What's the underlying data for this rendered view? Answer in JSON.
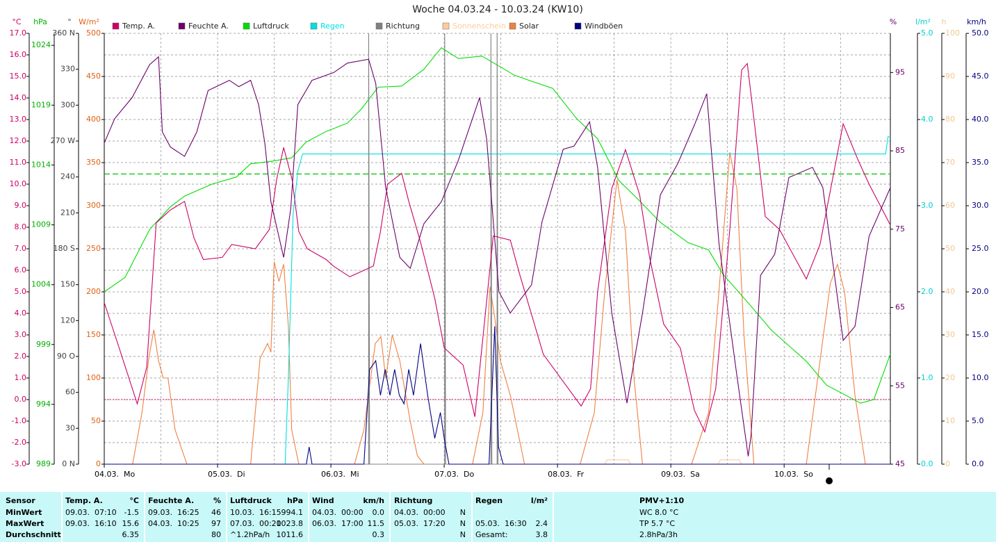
{
  "chart_data": {
    "type": "line",
    "title": "Woche 04.03.24 - 10.03.24 (KW10)",
    "xlim": [
      0,
      166.5
    ],
    "xticks": [
      {
        "value": 0,
        "label": "04.03.  Mo"
      },
      {
        "value": 24,
        "label": "05.03.  Di"
      },
      {
        "value": 48,
        "label": "06.03.  Mi"
      },
      {
        "value": 72,
        "label": "07.03.  Do"
      },
      {
        "value": 96,
        "label": "08.03.  Fr"
      },
      {
        "value": 120,
        "label": "09.03.  Sa"
      },
      {
        "value": 144,
        "label": "10.03.  So"
      }
    ],
    "grid": true,
    "axes": [
      {
        "unit": "°C",
        "color": "#cc0066",
        "ylim": [
          -3,
          17
        ],
        "yticks": [
          {
            "value": -3,
            "label": "-3.0"
          },
          {
            "value": -2,
            "label": "-2.0"
          },
          {
            "value": -1,
            "label": "-1.0"
          },
          {
            "value": 0,
            "label": "0.0"
          },
          {
            "value": 1,
            "label": "1.0"
          },
          {
            "value": 2,
            "label": "2.0"
          },
          {
            "value": 3,
            "label": "3.0"
          },
          {
            "value": 4,
            "label": "4.0"
          },
          {
            "value": 5,
            "label": "5.0"
          },
          {
            "value": 6,
            "label": "6.0"
          },
          {
            "value": 7,
            "label": "7.0"
          },
          {
            "value": 8,
            "label": "8.0"
          },
          {
            "value": 9,
            "label": "9.0"
          },
          {
            "value": 10,
            "label": "10.0"
          },
          {
            "value": 11,
            "label": "11.0"
          },
          {
            "value": 12,
            "label": "12.0"
          },
          {
            "value": 13,
            "label": "13.0"
          },
          {
            "value": 14,
            "label": "14.0"
          },
          {
            "value": 15,
            "label": "15.0"
          },
          {
            "value": 16,
            "label": "16.0"
          },
          {
            "value": 17,
            "label": "17.0"
          }
        ]
      },
      {
        "unit": "hPa",
        "color": "#00b000",
        "ylim": [
          989,
          1025
        ],
        "yticks": [
          989,
          994,
          999,
          1004,
          1009,
          1014,
          1019,
          1024
        ]
      },
      {
        "unit": "°",
        "color": "#404040",
        "ylim": [
          0,
          360
        ],
        "yticks": [
          {
            "value": 0,
            "label": "0 N"
          },
          30,
          60,
          {
            "value": 90,
            "label": "90 O"
          },
          120,
          150,
          {
            "value": 180,
            "label": "180 S"
          },
          210,
          240,
          {
            "value": 270,
            "label": "270 W"
          },
          300,
          330,
          {
            "value": 360,
            "label": "360 N"
          }
        ]
      },
      {
        "unit": "W/m²",
        "color": "#e06010",
        "ylim": [
          0,
          500
        ],
        "yticks": [
          0,
          50,
          100,
          150,
          200,
          250,
          300,
          350,
          400,
          450,
          500
        ]
      },
      {
        "unit": "%",
        "color": "#660066",
        "ylim": [
          45,
          100
        ],
        "yticks": [
          45,
          55,
          65,
          75,
          85,
          95
        ]
      },
      {
        "unit": "l/m²",
        "color": "#00d0d0",
        "ylim": [
          0,
          5
        ],
        "yticks": [
          {
            "value": 0,
            "label": "0.0"
          },
          {
            "value": 1,
            "label": "1.0"
          },
          {
            "value": 2,
            "label": "2.0"
          },
          {
            "value": 3,
            "label": "3.0"
          },
          {
            "value": 4,
            "label": "4.0"
          },
          {
            "value": 5,
            "label": "5.0"
          }
        ]
      },
      {
        "unit": "h",
        "color": "#f0c890",
        "ylim": [
          0,
          100
        ],
        "yticks": [
          0,
          10,
          20,
          30,
          40,
          50,
          60,
          70,
          80,
          90,
          100
        ]
      },
      {
        "unit": "km/h",
        "color": "#000080",
        "ylim": [
          0,
          50
        ],
        "yticks": [
          {
            "value": 0,
            "label": "0.0"
          },
          {
            "value": 5,
            "label": "5.0"
          },
          {
            "value": 10,
            "label": "10.0"
          },
          {
            "value": 15,
            "label": "15.0"
          },
          {
            "value": 20,
            "label": "20.0"
          },
          {
            "value": 25,
            "label": "25.0"
          },
          {
            "value": 30,
            "label": "30.0"
          },
          {
            "value": 35,
            "label": "35.0"
          },
          {
            "value": 40,
            "label": "40.0"
          },
          {
            "value": 45,
            "label": "45.0"
          },
          {
            "value": 50,
            "label": "50.0"
          }
        ]
      }
    ],
    "reference_lines": [
      {
        "axis": 1,
        "value": 1013.25,
        "color": "#00c000"
      },
      {
        "axis": 0,
        "value": 0,
        "color": "#cc0066"
      }
    ],
    "series": [
      {
        "name": "Temp. A.",
        "color": "#cc0066",
        "axis": 0,
        "x": [
          0,
          3,
          7,
          9,
          11,
          14,
          17,
          19,
          21,
          25,
          27,
          32,
          35,
          36.5,
          38,
          39.8,
          41.2,
          43,
          47,
          48.5,
          52,
          54,
          57,
          58.5,
          60,
          63,
          64.5,
          67,
          70,
          72,
          76,
          78.5,
          82.4,
          86,
          88,
          93,
          96,
          101,
          103,
          104.5,
          107.5,
          110.4,
          113.4,
          115.5,
          118.5,
          122,
          125,
          127.2,
          129.5,
          132.5,
          135,
          136.2,
          138,
          140,
          143,
          148.7,
          151.6,
          156.5,
          159.7,
          162,
          166.5
        ],
        "values": [
          4.5,
          2.5,
          -0.2,
          1.5,
          8.2,
          8.8,
          9.2,
          7.5,
          6.5,
          6.6,
          7.2,
          7.0,
          7.9,
          10.2,
          11.7,
          10.2,
          7.8,
          7.0,
          6.5,
          6.2,
          5.7,
          5.9,
          6.2,
          7.8,
          10.0,
          10.5,
          9.2,
          7.3,
          4.7,
          2.4,
          1.6,
          -0.8,
          7.6,
          7.4,
          5.8,
          2.1,
          1.2,
          -0.3,
          0.5,
          5.0,
          9.8,
          11.6,
          9.5,
          6.6,
          3.5,
          2.4,
          -0.5,
          -1.5,
          0.5,
          7.9,
          15.3,
          15.6,
          12.3,
          8.5,
          7.9,
          5.6,
          7.2,
          12.8,
          11.1,
          10.0,
          8.1
        ]
      },
      {
        "name": "Feuchte A.",
        "color": "#6b006b",
        "axis": 4,
        "x": [
          0,
          2.2,
          5.9,
          9.6,
          11.5,
          12.3,
          14,
          17,
          19.6,
          22,
          26.5,
          28.5,
          31,
          32.7,
          34,
          35.3,
          38,
          39.5,
          41,
          44,
          48.6,
          51.5,
          56,
          57.5,
          59.6,
          62.6,
          64.8,
          67.7,
          71.4,
          75,
          79.5,
          81,
          83.6,
          86,
          90.5,
          92.7,
          97.2,
          99.5,
          102.8,
          104.5,
          107.5,
          110.7,
          114,
          117.8,
          121.5,
          125,
          127.6,
          130.2,
          134,
          136.4,
          137,
          139,
          142,
          145,
          150,
          152.2,
          156.5,
          159,
          162,
          166.5
        ],
        "values": [
          86,
          89.1,
          91.8,
          96,
          97,
          87.4,
          85.5,
          84.3,
          87.4,
          92.7,
          94,
          93.2,
          94,
          90.9,
          86,
          78.5,
          71.4,
          77.6,
          90.9,
          94,
          95,
          96.2,
          96.7,
          93.6,
          80.3,
          71.4,
          70,
          75.7,
          78.5,
          83.8,
          91.8,
          86.5,
          67,
          64.3,
          67.9,
          75.9,
          85.2,
          85.6,
          88.7,
          82.9,
          64.3,
          52.8,
          64.3,
          79.4,
          83.4,
          88.3,
          92.3,
          73.2,
          56.3,
          46,
          48.7,
          69.1,
          71.8,
          81.6,
          82.9,
          80.3,
          60.8,
          62.6,
          74.1,
          80.3
        ]
      },
      {
        "name": "Luftdruck",
        "color": "#00dd00",
        "axis": 1,
        "x": [
          0,
          4.4,
          9.6,
          14,
          17,
          22.8,
          28,
          31,
          35.3,
          39.7,
          42.7,
          47,
          51.5,
          54.5,
          58,
          63,
          67.7,
          71.4,
          75,
          80,
          86.9,
          90.5,
          95,
          100,
          104.5,
          109,
          113.4,
          117.8,
          123.7,
          128,
          131,
          137,
          141.3,
          148.7,
          153,
          160.2,
          163,
          166.5
        ],
        "values": [
          1003.4,
          1004.6,
          1008.6,
          1010.5,
          1011.4,
          1012.4,
          1013,
          1014.1,
          1014.3,
          1014.6,
          1015.9,
          1016.8,
          1017.5,
          1018.7,
          1020.5,
          1020.6,
          1022,
          1023.8,
          1022.9,
          1023.1,
          1021.5,
          1021,
          1020.4,
          1017.9,
          1016.2,
          1012.7,
          1011,
          1009.2,
          1007.5,
          1006.9,
          1004.9,
          1002.2,
          1000.2,
          997.6,
          995.6,
          994.1,
          994.4,
          998.2
        ]
      },
      {
        "name": "Regen",
        "color": "#00e0e0",
        "axis": 5,
        "x": [
          0,
          38.3,
          39,
          40,
          41,
          42,
          165.5,
          166,
          166.5
        ],
        "values": [
          0,
          0,
          1,
          2.9,
          3.4,
          3.6,
          3.6,
          3.8,
          3.8
        ]
      },
      {
        "name": "Richtung",
        "color": "#808080",
        "axis": 2,
        "x": [
          0,
          56,
          56,
          56.2,
          72.1,
          72.1,
          72.3,
          81.9,
          81.9,
          82.1,
          83.2,
          83.2,
          83.4,
          166.5
        ],
        "values": [
          0,
          0,
          360,
          0,
          0,
          360,
          0,
          0,
          360,
          0,
          0,
          360,
          0,
          0
        ]
      },
      {
        "name": "Sonnenschein",
        "color": "#ffcc99",
        "axis": 6,
        "x": [
          106,
          106.5,
          111,
          111.5,
          130,
          130.5,
          134.5,
          135
        ],
        "values": [
          0,
          1,
          1,
          0,
          0,
          1,
          1,
          0
        ]
      },
      {
        "name": "Solar",
        "color": "#f08040",
        "axis": 3,
        "x": [
          0,
          6,
          8,
          9.5,
          10.5,
          11.5,
          12.5,
          13.5,
          15,
          17.5,
          31,
          33,
          34.6,
          35.3,
          36,
          37,
          38,
          39,
          39.7,
          41.2,
          53,
          55,
          57.4,
          58.6,
          59.6,
          61,
          62.6,
          64.8,
          66.3,
          67.7,
          78,
          80.2,
          81.7,
          82.7,
          83.9,
          86,
          89,
          100.8,
          103.8,
          106,
          108.6,
          110.4,
          112.2,
          114,
          124.4,
          128,
          130.2,
          132.5,
          134,
          135.5,
          137.6,
          148.7,
          151.6,
          153.8,
          155.3,
          156.8,
          159,
          161.2,
          166.5
        ],
        "values": [
          0,
          0,
          60,
          125,
          156,
          120,
          100,
          100,
          40,
          0,
          0,
          123,
          140,
          130,
          235,
          212,
          232,
          160,
          40,
          0,
          0,
          40,
          140,
          148,
          100,
          150,
          120,
          50,
          10,
          0,
          0,
          60,
          206,
          170,
          120,
          80,
          0,
          0,
          60,
          200,
          330,
          270,
          100,
          0,
          0,
          60,
          200,
          362,
          320,
          150,
          0,
          0,
          120,
          210,
          232,
          200,
          80,
          0,
          0
        ]
      },
      {
        "name": "Windböen",
        "color": "#000080",
        "axis": 7,
        "x": [
          0,
          42.8,
          43.4,
          44,
          55,
          56.2,
          57.5,
          58.5,
          59.5,
          60.5,
          61.5,
          62.5,
          63.5,
          64.5,
          65.5,
          67,
          68.5,
          70,
          71.2,
          72,
          73,
          81.5,
          82.7,
          83.5,
          84.5,
          166.5
        ],
        "values": [
          0,
          0,
          2,
          0,
          0,
          11,
          12,
          8,
          11,
          8,
          11,
          8,
          7,
          11,
          8,
          14,
          8,
          3,
          6,
          3,
          0,
          0,
          16,
          2,
          0,
          0
        ]
      }
    ]
  },
  "table": {
    "header": [
      "Sensor",
      "Temp. A.",
      "°C",
      "Feuchte A.",
      "%",
      "Luftdruck",
      "hPa",
      "Wind",
      "km/h",
      "Richtung",
      null,
      "Regen",
      "l/m²",
      "PMV+1:10"
    ],
    "rows": [
      [
        "MinWert",
        "09.03.  07:10",
        "-1.5",
        "09.03.  16:25",
        "46",
        "10.03.  16:15",
        "994.1",
        "04.03.  00:00",
        "0.0",
        "04.03.  00:00",
        "N",
        null,
        null,
        "WC 8.0 °C"
      ],
      [
        "MaxWert",
        "09.03.  16:10",
        "15.6",
        "04.03.  10:25",
        "97",
        "07.03.  00:20",
        "1023.8",
        "06.03.  17:00",
        "11.5",
        "05.03.  17:20",
        "N",
        "05.03.  16:30",
        "2.4",
        "TP 5.7 °C"
      ],
      [
        "Durchschnitt",
        null,
        "6.35",
        null,
        "80",
        "^1.2hPa/h",
        "1011.6",
        null,
        "0.3",
        null,
        "N",
        "Gesamt:",
        "3.8",
        "2.8hPa/3h"
      ]
    ]
  }
}
